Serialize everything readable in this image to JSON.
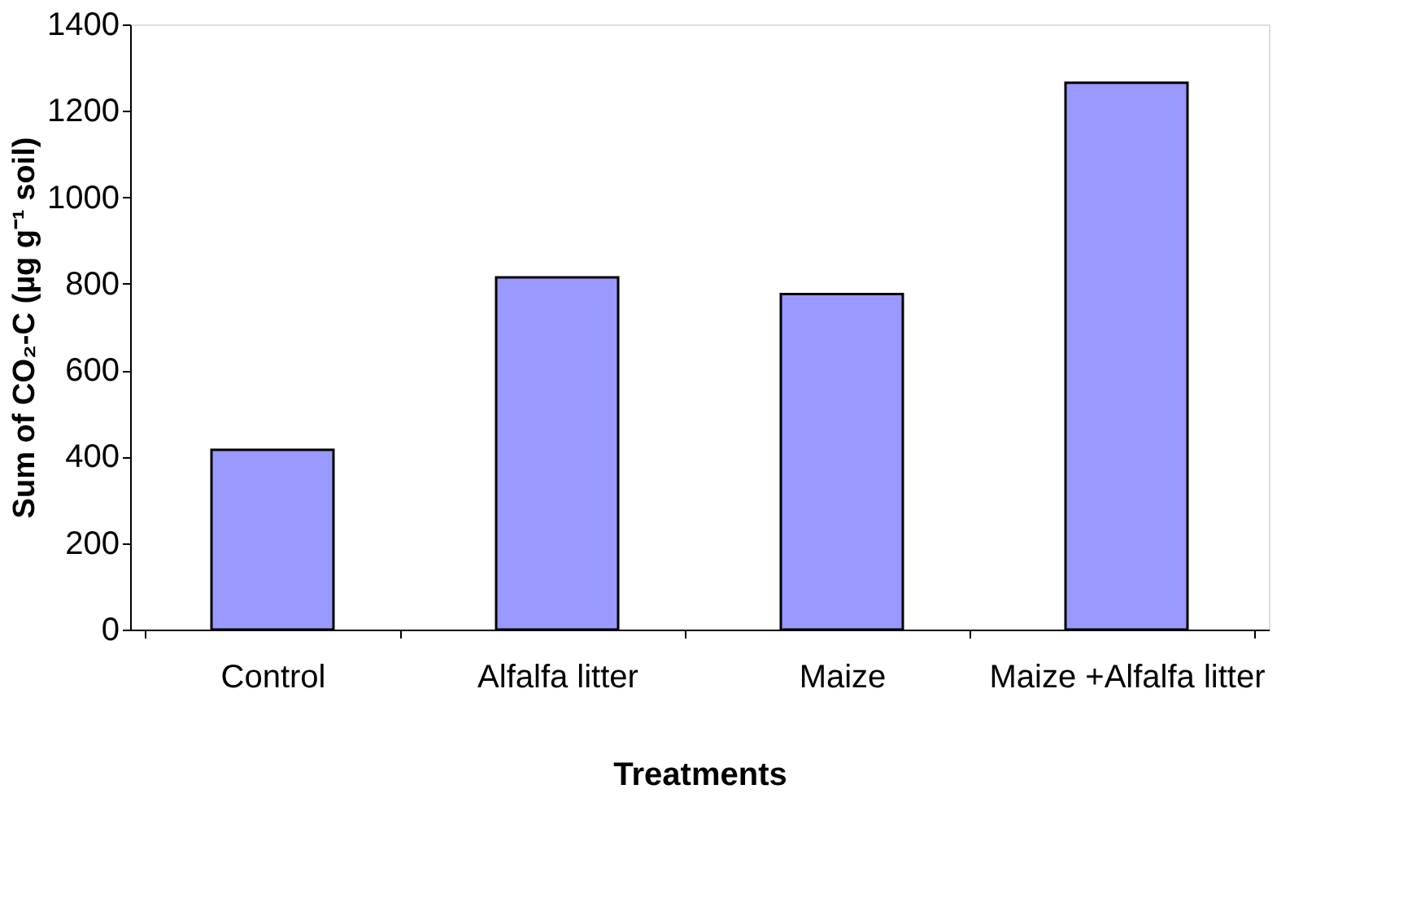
{
  "chart_data": {
    "type": "bar",
    "xlabel": "Treatments",
    "ylabel": "Sum of CO₂-C (µg g⁻¹ soil)",
    "categories": [
      "Control",
      "Alfalfa litter",
      "Maize",
      "Maize +Alfalfa litter"
    ],
    "values": [
      416,
      815,
      776,
      1265
    ],
    "color": "#9999ff",
    "ylim": [
      0,
      1400
    ],
    "yticks": [
      0,
      200,
      400,
      600,
      800,
      1000,
      1200,
      1400
    ],
    "grid": false
  }
}
